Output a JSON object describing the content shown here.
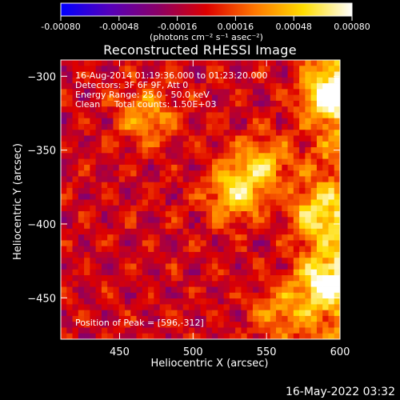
{
  "chart_data": {
    "type": "heatmap",
    "title": "Reconstructed RHESSI Image",
    "xlabel": "Heliocentric X (arcsec)",
    "ylabel": "Heliocentric Y (arcsec)",
    "xlim": [
      410,
      600
    ],
    "ylim": [
      -478,
      -289
    ],
    "x_ticks": [
      450,
      500,
      550,
      600
    ],
    "y_ticks": [
      -300,
      -350,
      -400,
      -450
    ],
    "colorbar": {
      "label": "(photons cm⁻² s⁻¹ asec⁻²)",
      "range": [
        -0.0008,
        0.0008
      ],
      "ticks": [
        "-0.00080",
        "-0.00048",
        "-0.00016",
        "0.00016",
        "0.00048",
        "0.00080"
      ],
      "colors": [
        "#0000ff",
        "#5500bb",
        "#8a0066",
        "#dd0000",
        "#ff7700",
        "#ffdd00",
        "#ffffff"
      ]
    },
    "annotations": {
      "time_range": "16-Aug-2014 01:19:36.000 to 01:23:20.000",
      "detectors": "Detectors: 3F 6F 9F, Att 0",
      "energy_range": "Energy Range: 25.0 - 50.0 keV",
      "method_counts": "Clean     Total counts: 1.50E+03",
      "peak": "Position of Peak = [596,-312]"
    },
    "sources": [
      {
        "x": 468,
        "y": -327,
        "intensity": 0.00045
      },
      {
        "x": 528,
        "y": -378,
        "intensity": 0.0006
      },
      {
        "x": 548,
        "y": -360,
        "intensity": 0.0005
      },
      {
        "x": 596,
        "y": -312,
        "intensity": 0.0008
      },
      {
        "x": 590,
        "y": -440,
        "intensity": 0.0007
      },
      {
        "x": 585,
        "y": -395,
        "intensity": 0.0005
      },
      {
        "x": 560,
        "y": -460,
        "intensity": 0.0004
      }
    ],
    "grid": false
  },
  "footer": {
    "date_stamp": "16-May-2022 03:32"
  }
}
